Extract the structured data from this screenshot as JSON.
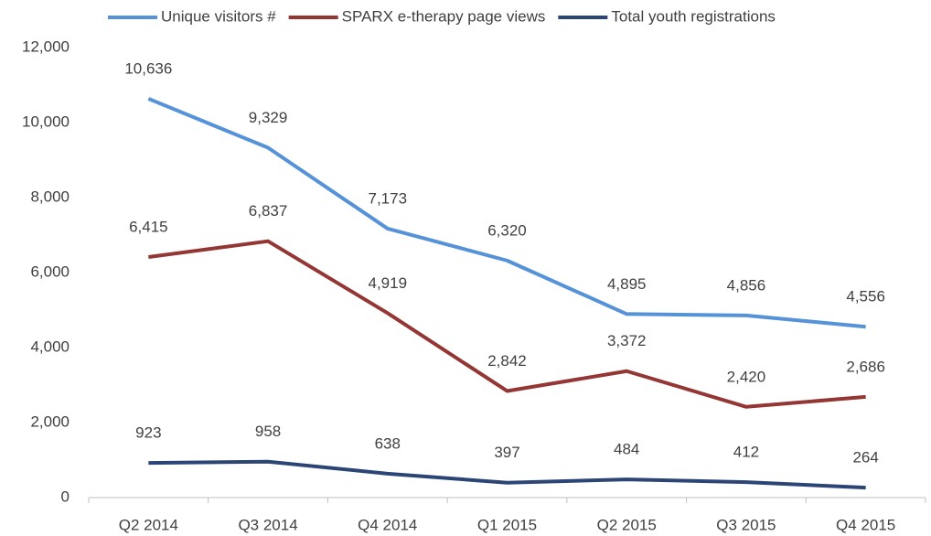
{
  "chart_data": {
    "type": "line",
    "categories": [
      "Q2 2014",
      "Q3 2014",
      "Q4 2014",
      "Q1 2015",
      "Q2 2015",
      "Q3 2015",
      "Q4 2015"
    ],
    "series": [
      {
        "name": "Unique visitors #",
        "color": "#5592d8",
        "values": [
          10636,
          9329,
          7173,
          6320,
          4895,
          4856,
          4556
        ],
        "value_labels": [
          "10,636",
          "9,329",
          "7,173",
          "6,320",
          "4,895",
          "4,856",
          "4,556"
        ]
      },
      {
        "name": "SPARX e-therapy page views",
        "color": "#943634",
        "values": [
          6415,
          6837,
          4919,
          2842,
          3372,
          2420,
          2686
        ],
        "value_labels": [
          "6,415",
          "6,837",
          "4,919",
          "2,842",
          "3,372",
          "2,420",
          "2,686"
        ]
      },
      {
        "name": "Total youth registrations",
        "color": "#2b4676",
        "values": [
          923,
          958,
          638,
          397,
          484,
          412,
          264
        ]
      }
    ],
    "ylim": [
      0,
      12000
    ],
    "yticks": [
      0,
      {
        "value": 2000,
        "label": "2,000"
      },
      {
        "value": 4000,
        "label": "4,000"
      },
      {
        "value": 6000,
        "label": "6,000"
      },
      {
        "value": 8000,
        "label": "8,000"
      },
      {
        "value": 10000,
        "label": "10,000"
      },
      {
        "value": 12000,
        "label": "12,000"
      }
    ],
    "legend": "top"
  }
}
